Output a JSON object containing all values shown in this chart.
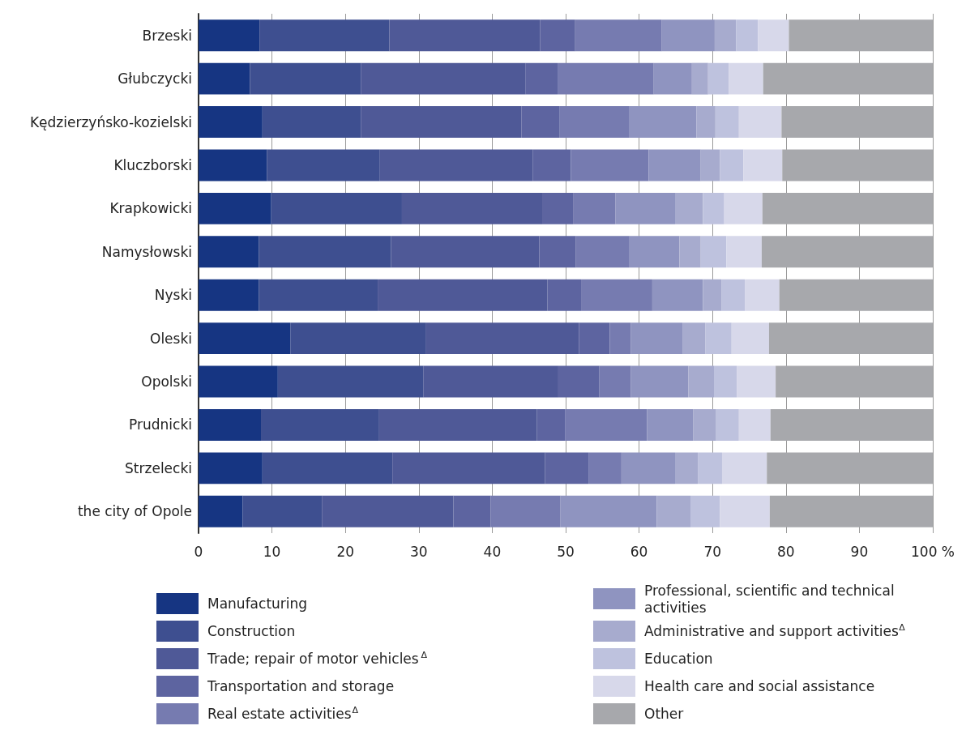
{
  "chart_data": {
    "type": "bar",
    "orientation": "horizontal",
    "stacked": true,
    "grid": "x",
    "legend": "bottom",
    "categories": [
      "Brzeski",
      "Głubczycki",
      "Kędzierzyńsko-kozielski",
      "Kluczborski",
      "Krapkowicki",
      "Namysłowski",
      "Nyski",
      "Oleski",
      "Opolski",
      "Prudnicki",
      "Strzelecki",
      "the city of Opole"
    ],
    "xlim": [
      0,
      100
    ],
    "xticks": [
      0,
      10,
      20,
      30,
      40,
      50,
      60,
      70,
      80,
      90,
      {
        "value": 100,
        "label": "100 %"
      }
    ],
    "series": [
      {
        "name": "Manufacturing",
        "color": "#163582",
        "values": [
          8.3,
          7.0,
          8.7,
          9.3,
          9.9,
          8.2,
          8.2,
          12.5,
          10.8,
          8.5,
          8.7,
          6.0
        ]
      },
      {
        "name": "Construction",
        "color": "#3e4f90",
        "values": [
          17.7,
          15.1,
          13.4,
          15.4,
          17.8,
          18.0,
          16.2,
          18.5,
          19.8,
          16.1,
          17.7,
          10.8
        ]
      },
      {
        "name": "Trade; repair of motor vehicles$^{Δ}$",
        "color": "#4f5997",
        "values": [
          20.5,
          22.4,
          21.9,
          20.8,
          19.1,
          20.2,
          23.1,
          20.8,
          18.4,
          21.5,
          20.8,
          17.9
        ]
      },
      {
        "name": "Transportation and storage",
        "color": "#5d64a0",
        "values": [
          4.8,
          4.4,
          5.2,
          5.2,
          4.2,
          5.0,
          4.6,
          4.2,
          5.6,
          3.8,
          5.9,
          5.1
        ]
      },
      {
        "name": "Real estate activities$^{Δ}$",
        "color": "#767bb0",
        "values": [
          11.8,
          13.1,
          9.5,
          10.6,
          5.8,
          7.3,
          9.7,
          2.9,
          4.3,
          11.2,
          4.5,
          9.5
        ]
      },
      {
        "name": "Professional, scientific and technical activities",
        "color": "#8f94c0",
        "values": [
          7.2,
          5.2,
          9.1,
          7.1,
          8.1,
          6.8,
          6.9,
          7.0,
          7.8,
          6.3,
          7.3,
          13.1
        ]
      },
      {
        "name": "Administrative and support activities$^{Δ}$",
        "color": "#a7abce",
        "values": [
          2.9,
          2.2,
          2.6,
          2.6,
          3.8,
          2.9,
          2.5,
          3.1,
          3.5,
          3.1,
          3.1,
          4.6
        ]
      },
      {
        "name": "Education",
        "color": "#bec2de",
        "values": [
          3.0,
          2.8,
          3.2,
          3.2,
          2.9,
          3.5,
          3.2,
          3.6,
          3.1,
          3.1,
          3.3,
          4.0
        ]
      },
      {
        "name": "Health care and social assistance",
        "color": "#d7d8ea",
        "values": [
          4.2,
          4.7,
          5.8,
          5.3,
          5.2,
          4.8,
          4.7,
          5.1,
          5.3,
          4.3,
          6.1,
          6.8
        ]
      },
      {
        "name": "Other",
        "color": "#a7a8ac",
        "values": [
          19.6,
          23.1,
          20.6,
          20.5,
          23.2,
          23.3,
          20.9,
          22.3,
          21.4,
          22.1,
          22.6,
          22.2
        ]
      }
    ]
  }
}
